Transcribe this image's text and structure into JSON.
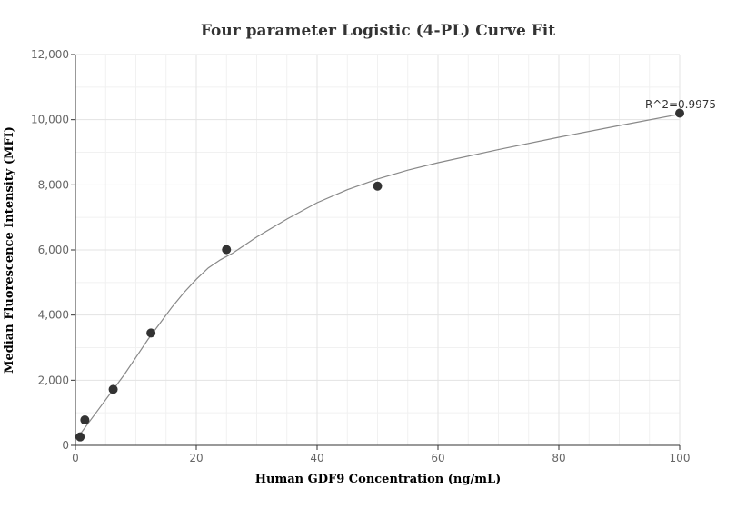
{
  "chart_data": {
    "type": "scatter",
    "title": "Four parameter Logistic (4-PL) Curve Fit",
    "xlabel": "Human GDF9 Concentration (ng/mL)",
    "ylabel": "Median Fluorescence Intensity (MFI)",
    "xlim": [
      0,
      100
    ],
    "ylim": [
      0,
      12000
    ],
    "x_ticks": [
      0,
      20,
      40,
      60,
      80,
      100
    ],
    "y_ticks": [
      0,
      2000,
      4000,
      6000,
      8000,
      10000,
      12000
    ],
    "x_tick_labels": [
      "0",
      "20",
      "40",
      "60",
      "80",
      "100"
    ],
    "y_tick_labels": [
      "0",
      "2,000",
      "4,000",
      "6,000",
      "8,000",
      "10,000",
      "12,000"
    ],
    "grid": true,
    "points": {
      "x": [
        0.78,
        1.56,
        6.25,
        12.5,
        25,
        50,
        100
      ],
      "y": [
        260,
        780,
        1720,
        3450,
        6010,
        7960,
        10200
      ]
    },
    "fit_curve": {
      "x": [
        0,
        1,
        2,
        4,
        6,
        8,
        10,
        12,
        14,
        16,
        18,
        20,
        22,
        24,
        26,
        30,
        35,
        40,
        45,
        50,
        55,
        60,
        70,
        80,
        90,
        100
      ],
      "y": [
        180,
        400,
        650,
        1150,
        1650,
        2150,
        2700,
        3250,
        3750,
        4250,
        4700,
        5100,
        5450,
        5700,
        5900,
        6400,
        6950,
        7450,
        7850,
        8180,
        8450,
        8680,
        9080,
        9460,
        9820,
        10170
      ]
    },
    "annotation": "R^2=0.9975",
    "colors": {
      "points": "#333333",
      "curve": "#888888",
      "grid": "#e3e3e3",
      "axis": "#333333"
    }
  }
}
